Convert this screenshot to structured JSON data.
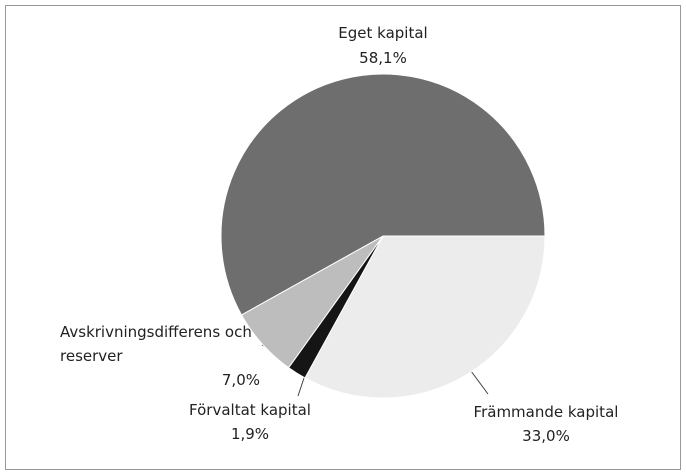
{
  "chart_data": {
    "type": "pie",
    "categories": [
      "Främmande kapital",
      "Förvaltat kapital",
      "Avskrivningsdifferens och reserver",
      "Eget kapital"
    ],
    "values": [
      33.0,
      1.9,
      7.0,
      58.1
    ],
    "value_labels": [
      "33,0%",
      "1,9%",
      "7,0%",
      "58,1%"
    ],
    "colors": [
      "#ececec",
      "#151515",
      "#bdbdbd",
      "#6e6e6e"
    ]
  }
}
